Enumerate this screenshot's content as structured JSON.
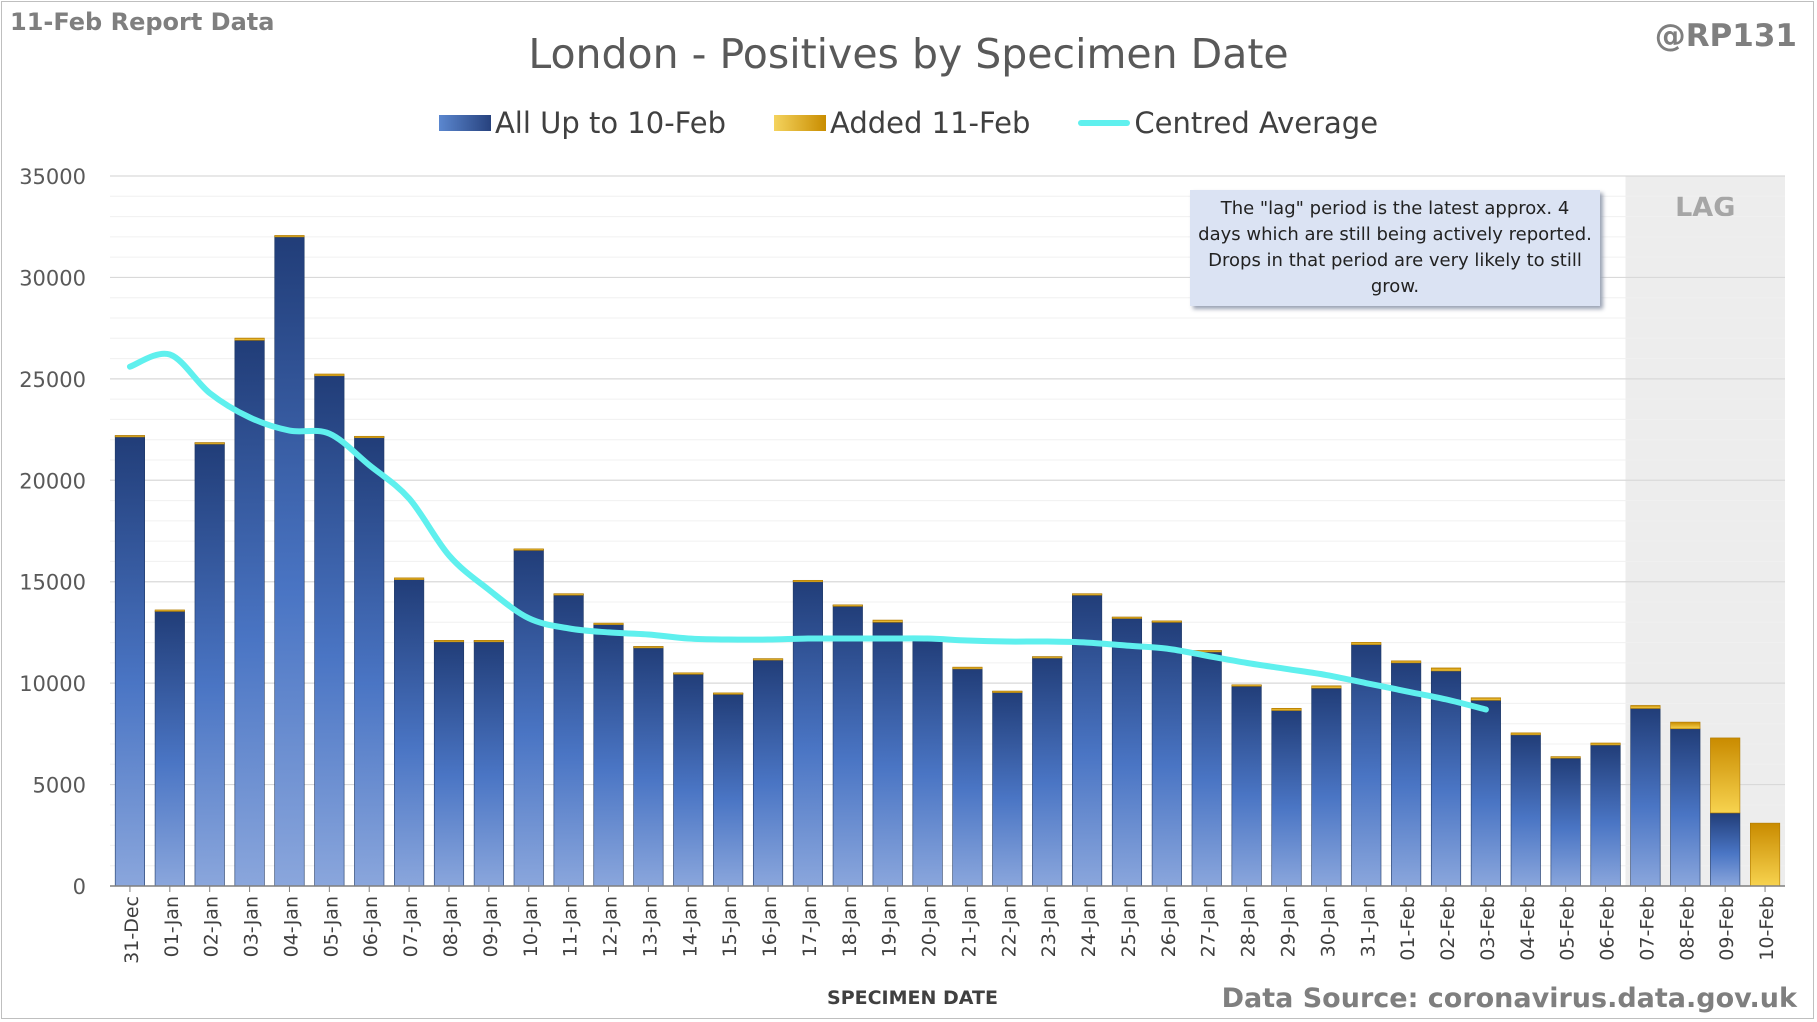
{
  "header": {
    "report_label": "11-Feb Report Data",
    "handle": "@RP131",
    "source": "Data Source: coronavirus.data.gov.uk"
  },
  "colors": {
    "base_bar": "#2f5597",
    "added_bar": "#e0a800",
    "average_line": "#5ff0ee",
    "lag_shade": "#ededed"
  },
  "chart_data": {
    "type": "bar",
    "title": "London - Positives by Specimen Date",
    "xlabel": "SPECIMEN DATE",
    "ylabel": "",
    "ylim": [
      0,
      35000
    ],
    "yticks": [
      0,
      5000,
      10000,
      15000,
      20000,
      25000,
      30000,
      35000
    ],
    "grid": true,
    "stacked": true,
    "legend_position": "top-center",
    "categories": [
      "31-Dec",
      "01-Jan",
      "02-Jan",
      "03-Jan",
      "04-Jan",
      "05-Jan",
      "06-Jan",
      "07-Jan",
      "08-Jan",
      "09-Jan",
      "10-Jan",
      "11-Jan",
      "12-Jan",
      "13-Jan",
      "14-Jan",
      "15-Jan",
      "16-Jan",
      "17-Jan",
      "18-Jan",
      "19-Jan",
      "20-Jan",
      "21-Jan",
      "22-Jan",
      "23-Jan",
      "24-Jan",
      "25-Jan",
      "26-Jan",
      "27-Jan",
      "28-Jan",
      "29-Jan",
      "30-Jan",
      "31-Jan",
      "01-Feb",
      "02-Feb",
      "03-Feb",
      "04-Feb",
      "05-Feb",
      "06-Feb",
      "07-Feb",
      "08-Feb",
      "09-Feb",
      "10-Feb"
    ],
    "series": [
      {
        "name": "All Up to 10-Feb",
        "kind": "bar",
        "values": [
          22200,
          13550,
          21850,
          26900,
          32050,
          25150,
          22150,
          15100,
          12100,
          12100,
          16600,
          14400,
          12900,
          11800,
          10500,
          9500,
          11200,
          15050,
          13850,
          13000,
          12250,
          10700,
          9600,
          11300,
          14400,
          13250,
          13050,
          11600,
          9900,
          8650,
          9750,
          11900,
          11000,
          10600,
          9150,
          7450,
          6300,
          6950,
          8750,
          7750,
          3600,
          0
        ]
      },
      {
        "name": "Added 11-Feb",
        "kind": "bar",
        "values": [
          10,
          60,
          10,
          110,
          20,
          90,
          20,
          90,
          10,
          10,
          20,
          10,
          60,
          10,
          10,
          20,
          10,
          20,
          10,
          110,
          20,
          90,
          10,
          10,
          10,
          10,
          20,
          10,
          20,
          110,
          120,
          110,
          100,
          150,
          130,
          100,
          80,
          100,
          150,
          330,
          3700,
          3100
        ]
      },
      {
        "name": "Centred Average",
        "kind": "line",
        "values": [
          25600,
          26200,
          24300,
          23100,
          22450,
          22300,
          20750,
          19100,
          16300,
          14600,
          13200,
          12700,
          12500,
          12400,
          12200,
          12150,
          12150,
          12200,
          12200,
          12200,
          12200,
          12100,
          12050,
          12050,
          12000,
          11850,
          11700,
          11350,
          11000,
          10700,
          10400,
          10000,
          9600,
          9200,
          8700,
          null,
          null,
          null,
          null,
          null,
          null,
          null
        ]
      }
    ],
    "lag_region": {
      "label": "LAG",
      "from": "07-Feb",
      "to": "10-Feb"
    },
    "annotation": "The \"lag\" period is the latest approx. 4 days which are still being actively reported.  Drops in that period are very likely to still grow."
  }
}
